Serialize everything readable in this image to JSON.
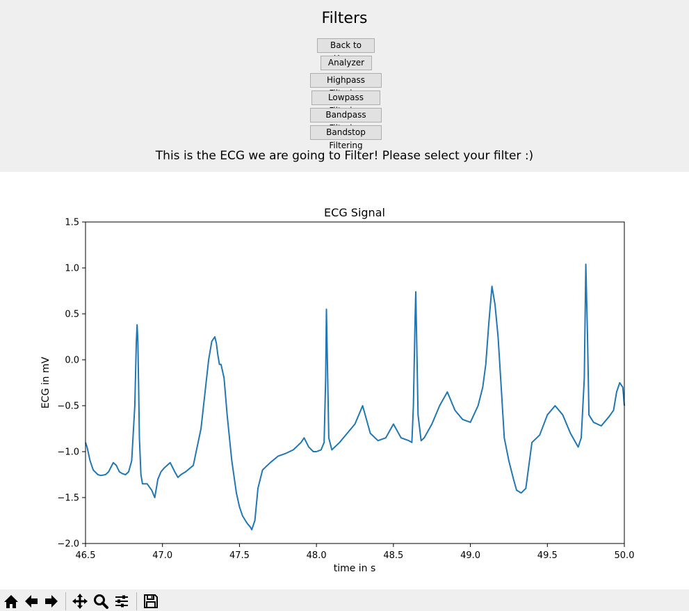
{
  "header": {
    "title": "Filters",
    "buttons": [
      {
        "label": "Back to Home"
      },
      {
        "label": "Analyzer"
      },
      {
        "label": "Highpass Filtering"
      },
      {
        "label": "Lowpass Filtering"
      },
      {
        "label": "Bandpass Filtering"
      },
      {
        "label": "Bandstop Filtering"
      }
    ],
    "message": "This is the ECG we are going to Filter! Please select your filter :)"
  },
  "chart_data": {
    "type": "line",
    "title": "ECG Signal",
    "xlabel": "time in s",
    "ylabel": "ECG in mV",
    "xlim": [
      46.5,
      50.0
    ],
    "ylim": [
      -2.0,
      1.5
    ],
    "xticks": [
      "46.5",
      "47.0",
      "47.5",
      "48.0",
      "48.5",
      "49.0",
      "49.5",
      "50.0"
    ],
    "yticks": [
      "1.5",
      "1.0",
      "0.5",
      "0.0",
      "−0.5",
      "−1.0",
      "−1.5",
      "−2.0"
    ],
    "grid": false,
    "line_color": "#1f77b4",
    "series": [
      {
        "x": [
          46.5,
          46.51,
          46.53,
          46.55,
          46.58,
          46.6,
          46.63,
          46.65,
          46.68,
          46.7,
          46.72,
          46.74,
          46.76,
          46.78,
          46.8,
          46.82,
          46.83,
          46.835,
          46.84,
          46.845,
          46.85,
          46.86,
          46.87,
          46.9,
          46.93,
          46.95,
          46.97,
          46.99,
          47.01,
          47.05,
          47.08,
          47.1,
          47.12,
          47.15,
          47.2,
          47.25,
          47.28,
          47.3,
          47.32,
          47.34,
          47.35,
          47.36,
          47.37,
          47.38,
          47.4,
          47.42,
          47.45,
          47.48,
          47.5,
          47.52,
          47.55,
          47.57,
          47.58,
          47.6,
          47.62,
          47.65,
          47.7,
          47.75,
          47.8,
          47.85,
          47.9,
          47.92,
          47.95,
          47.98,
          48.0,
          48.03,
          48.05,
          48.06,
          48.065,
          48.07,
          48.08,
          48.1,
          48.15,
          48.2,
          48.25,
          48.3,
          48.35,
          48.4,
          48.45,
          48.5,
          48.55,
          48.6,
          48.62,
          48.63,
          48.64,
          48.645,
          48.65,
          48.66,
          48.68,
          48.7,
          48.75,
          48.8,
          48.85,
          48.9,
          48.95,
          49.0,
          49.05,
          49.08,
          49.1,
          49.12,
          49.14,
          49.16,
          49.18,
          49.2,
          49.22,
          49.25,
          49.28,
          49.3,
          49.33,
          49.36,
          49.4,
          49.45,
          49.5,
          49.55,
          49.6,
          49.65,
          49.7,
          49.72,
          49.74,
          49.75,
          49.76,
          49.77,
          49.8,
          49.85,
          49.9,
          49.93,
          49.95,
          49.97,
          49.99,
          50.0
        ],
        "y": [
          -0.9,
          -0.95,
          -1.1,
          -1.2,
          -1.25,
          -1.26,
          -1.25,
          -1.22,
          -1.12,
          -1.15,
          -1.22,
          -1.24,
          -1.25,
          -1.22,
          -1.1,
          -0.5,
          0.2,
          0.38,
          0.2,
          -0.3,
          -0.85,
          -1.25,
          -1.35,
          -1.35,
          -1.42,
          -1.5,
          -1.3,
          -1.22,
          -1.18,
          -1.12,
          -1.22,
          -1.28,
          -1.25,
          -1.22,
          -1.15,
          -0.75,
          -0.3,
          0.0,
          0.2,
          0.25,
          0.18,
          0.05,
          -0.05,
          -0.05,
          -0.2,
          -0.6,
          -1.1,
          -1.45,
          -1.6,
          -1.7,
          -1.78,
          -1.82,
          -1.85,
          -1.75,
          -1.4,
          -1.2,
          -1.12,
          -1.05,
          -1.02,
          -0.98,
          -0.9,
          -0.85,
          -0.95,
          -1.0,
          -1.0,
          -0.98,
          -0.9,
          -0.2,
          0.55,
          0.1,
          -0.85,
          -0.98,
          -0.9,
          -0.8,
          -0.7,
          -0.5,
          -0.8,
          -0.88,
          -0.85,
          -0.7,
          -0.85,
          -0.88,
          -0.9,
          -0.5,
          0.4,
          0.74,
          0.3,
          -0.6,
          -0.88,
          -0.85,
          -0.7,
          -0.5,
          -0.35,
          -0.55,
          -0.65,
          -0.68,
          -0.5,
          -0.3,
          -0.05,
          0.4,
          0.8,
          0.6,
          0.25,
          -0.3,
          -0.85,
          -1.1,
          -1.3,
          -1.42,
          -1.45,
          -1.4,
          -0.9,
          -0.82,
          -0.6,
          -0.5,
          -0.6,
          -0.8,
          -0.95,
          -0.85,
          -0.2,
          1.04,
          0.3,
          -0.6,
          -0.68,
          -0.72,
          -0.62,
          -0.55,
          -0.35,
          -0.25,
          -0.3,
          -0.5
        ]
      }
    ]
  },
  "toolbar": {
    "items": [
      {
        "icon": "home-icon"
      },
      {
        "icon": "back-arrow-icon"
      },
      {
        "icon": "forward-arrow-icon"
      },
      {
        "icon": "pan-icon"
      },
      {
        "icon": "zoom-icon"
      },
      {
        "icon": "configure-subplots-icon"
      },
      {
        "icon": "save-icon"
      }
    ]
  }
}
